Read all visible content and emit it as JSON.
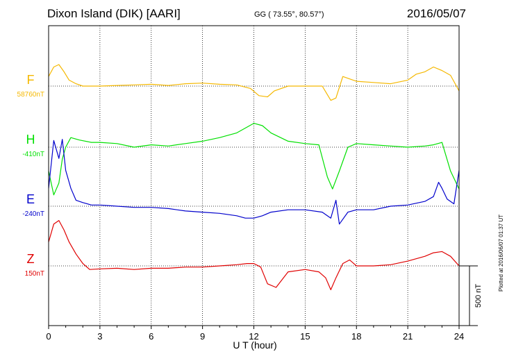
{
  "header": {
    "title": "Dixon Island (DIK)  [AARI]",
    "coords": "GG ( 73.55°,  80.57°)",
    "date": "2016/05/07"
  },
  "footer": {
    "plotted": "Plotted at 2016/06/07 01:37 UT"
  },
  "chart_data": {
    "type": "line",
    "xlabel": "U T (hour)",
    "xlim": [
      0,
      24
    ],
    "xticks": [
      "0",
      "3",
      "6",
      "9",
      "12",
      "15",
      "18",
      "21",
      "24"
    ],
    "scale_bar": {
      "label": "500 nT",
      "value_nT": 500
    },
    "colors": {
      "F": "#f5b800",
      "H": "#00e000",
      "E": "#0000cc",
      "Z": "#e00000"
    },
    "series": [
      {
        "name": "F",
        "baseline_label": "58760nT",
        "x": [
          0,
          0.3,
          0.6,
          0.9,
          1.2,
          1.6,
          2,
          3,
          4,
          5,
          6,
          7,
          8,
          9,
          10,
          11,
          11.8,
          12.3,
          12.8,
          13.2,
          14,
          15,
          16,
          16.5,
          16.8,
          17.2,
          18,
          19,
          20,
          21,
          21.5,
          22,
          22.5,
          23,
          23.5,
          24
        ],
        "y": [
          80,
          160,
          180,
          120,
          50,
          20,
          0,
          0,
          5,
          10,
          15,
          5,
          20,
          25,
          15,
          10,
          -20,
          -80,
          -90,
          -40,
          0,
          0,
          0,
          -120,
          -100,
          80,
          40,
          30,
          20,
          50,
          100,
          120,
          160,
          130,
          90,
          -40
        ]
      },
      {
        "name": "H",
        "baseline_label": "-410nT",
        "x": [
          0,
          0.3,
          0.6,
          0.8,
          1,
          1.3,
          1.8,
          2.5,
          3,
          4,
          5,
          6,
          7,
          8,
          9,
          10,
          11,
          11.5,
          12,
          12.5,
          13,
          14,
          15,
          15.8,
          16.3,
          16.6,
          17,
          17.5,
          18,
          19,
          20,
          21,
          22,
          22.5,
          23,
          23.5,
          24
        ],
        "y": [
          -200,
          -400,
          -300,
          -100,
          0,
          80,
          60,
          40,
          40,
          30,
          0,
          20,
          10,
          30,
          50,
          80,
          120,
          160,
          200,
          180,
          120,
          50,
          30,
          20,
          -250,
          -350,
          -200,
          0,
          30,
          20,
          10,
          0,
          10,
          20,
          40,
          -200,
          -350
        ]
      },
      {
        "name": "E",
        "baseline_label": "-240nT",
        "x": [
          0,
          0.3,
          0.6,
          0.8,
          1,
          1.3,
          1.6,
          2,
          2.5,
          3,
          4,
          5,
          6,
          7,
          8,
          9,
          10,
          11,
          11.5,
          12,
          12.5,
          13,
          14,
          15,
          16,
          16.5,
          16.8,
          17,
          17.5,
          18,
          19,
          20,
          21,
          22,
          22.5,
          22.8,
          23,
          23.3,
          23.7,
          24
        ],
        "y": [
          150,
          550,
          400,
          560,
          300,
          150,
          50,
          30,
          10,
          10,
          0,
          -10,
          -10,
          -20,
          -40,
          -50,
          -60,
          -80,
          -100,
          -100,
          -80,
          -50,
          -30,
          -30,
          -50,
          -100,
          50,
          -150,
          -50,
          -30,
          -30,
          0,
          10,
          40,
          80,
          200,
          150,
          60,
          20,
          300
        ]
      },
      {
        "name": "Z",
        "baseline_label": "150nT",
        "x": [
          0,
          0.3,
          0.6,
          0.9,
          1.2,
          1.6,
          2,
          2.4,
          3,
          4,
          5,
          6,
          7,
          8,
          9,
          10,
          11,
          11.6,
          12,
          12.4,
          12.8,
          13.3,
          14,
          15,
          15.8,
          16.2,
          16.5,
          16.8,
          17.2,
          17.6,
          18,
          19,
          20,
          21,
          22,
          22.5,
          23,
          23.5,
          24
        ],
        "y": [
          200,
          350,
          380,
          300,
          200,
          100,
          20,
          -30,
          -25,
          -20,
          -30,
          -20,
          -20,
          -10,
          -10,
          0,
          10,
          20,
          20,
          -10,
          -150,
          -180,
          -50,
          -30,
          -50,
          -100,
          -200,
          -100,
          20,
          50,
          0,
          0,
          10,
          40,
          80,
          110,
          120,
          80,
          0
        ]
      }
    ]
  }
}
